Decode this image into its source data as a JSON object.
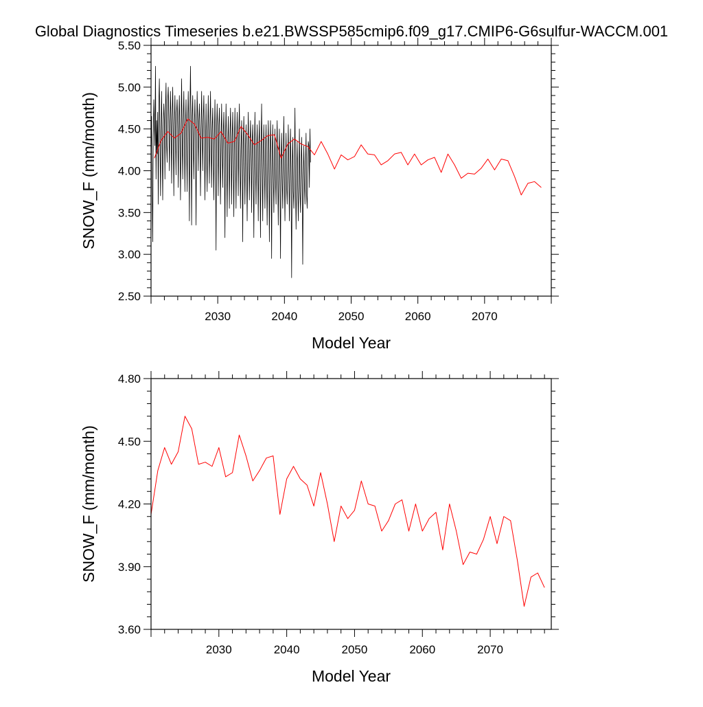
{
  "title": "Global Diagnostics Timeseries b.e21.BWSSP585cmip6.f09_g17.CMIP6-G6sulfur-WACCM.001",
  "colors": {
    "monthly": "#000000",
    "annual": "#ff0000",
    "axis": "#000000"
  },
  "chart_data": [
    {
      "type": "line",
      "xlabel": "Model Year",
      "ylabel": "SNOW_F (mm/month)",
      "xlim": [
        2020,
        2080
      ],
      "ylim": [
        2.5,
        5.5
      ],
      "xticks": [
        "2030",
        "2040",
        "2050",
        "2060",
        "2070"
      ],
      "yticks": [
        "2.50",
        "3.00",
        "3.50",
        "4.00",
        "4.50",
        "5.00",
        "5.50"
      ],
      "grid": false,
      "series": [
        {
          "kind": "monthly",
          "x_start": 2020.0,
          "x_step": 0.0833,
          "values": [
            4.2,
            4.65,
            3.85,
            3.15,
            4.4,
            4.85,
            4.55,
            4.3,
            5.25,
            3.9,
            4.6,
            4.2,
            4.7,
            3.6,
            4.8,
            5.1,
            4.4,
            3.7,
            4.45,
            4.95,
            4.35,
            3.65,
            4.5,
            4.8,
            4.6,
            3.9,
            4.75,
            5.05,
            4.3,
            4.1,
            4.85,
            5.0,
            4.6,
            4.0,
            4.55,
            4.95,
            4.55,
            3.85,
            4.65,
            5.0,
            4.45,
            3.7,
            4.55,
            4.9,
            4.4,
            3.95,
            4.7,
            4.85,
            4.5,
            3.8,
            4.6,
            4.9,
            4.35,
            3.65,
            4.5,
            5.1,
            4.4,
            3.9,
            4.6,
            4.95,
            4.4,
            3.75,
            4.55,
            4.85,
            4.3,
            3.75,
            4.6,
            4.95,
            4.45,
            3.4,
            4.7,
            5.25,
            4.5,
            3.35,
            4.65,
            4.9,
            4.3,
            3.9,
            4.55,
            4.85,
            4.35,
            3.35,
            4.4,
            4.95,
            4.55,
            4.0,
            4.6,
            4.8,
            4.4,
            3.7,
            4.5,
            4.95,
            4.45,
            4.0,
            4.6,
            4.9,
            4.4,
            3.65,
            4.3,
            4.8,
            4.2,
            3.75,
            4.45,
            4.9,
            4.3,
            3.85,
            4.55,
            4.95,
            4.35,
            3.8,
            4.5,
            4.75,
            4.2,
            3.65,
            4.4,
            4.85,
            4.3,
            3.05,
            4.5,
            4.8,
            4.35,
            3.7,
            4.55,
            4.75,
            4.2,
            3.6,
            4.35,
            4.8,
            4.25,
            3.8,
            4.45,
            4.7,
            4.2,
            3.2,
            4.35,
            4.8,
            4.15,
            3.45,
            4.3,
            4.65,
            4.2,
            3.55,
            4.4,
            4.75,
            4.25,
            3.6,
            4.4,
            4.7,
            4.1,
            3.45,
            4.3,
            4.75,
            4.2,
            3.55,
            4.35,
            4.7,
            4.3,
            3.7,
            4.5,
            4.8,
            4.1,
            3.55,
            4.25,
            4.6,
            4.15,
            3.15,
            4.35,
            4.65,
            4.1,
            3.6,
            4.3,
            4.55,
            4.05,
            3.4,
            4.25,
            4.7,
            4.1,
            3.65,
            4.3,
            4.6,
            4.15,
            3.5,
            4.35,
            4.55,
            4.0,
            3.2,
            4.25,
            4.7,
            4.05,
            3.6,
            4.25,
            4.55,
            4.1,
            3.4,
            4.3,
            4.6,
            4.0,
            3.2,
            4.3,
            4.8,
            4.05,
            3.4,
            4.25,
            4.55,
            4.05,
            3.55,
            4.25,
            4.55,
            3.95,
            3.35,
            4.2,
            4.6,
            4.05,
            3.15,
            4.2,
            4.6,
            4.0,
            2.95,
            4.2,
            4.55,
            3.95,
            3.5,
            4.1,
            4.5,
            3.9,
            3.6,
            4.25,
            4.6,
            3.95,
            3.35,
            4.15,
            4.5,
            3.85,
            2.95,
            4.15,
            4.45,
            3.9,
            3.55,
            4.2,
            4.65,
            3.9,
            3.4,
            4.1,
            4.45,
            3.8,
            3.6,
            4.1,
            4.55,
            3.95,
            3.4,
            4.15,
            4.5,
            3.85,
            2.72,
            4.05,
            4.4,
            3.75,
            3.55,
            4.05,
            4.75,
            3.85,
            3.3,
            4.0,
            4.35,
            3.8,
            3.4,
            3.9,
            4.5,
            3.75,
            3.5,
            4.05,
            4.4,
            3.85,
            2.88,
            3.95,
            4.3,
            3.85,
            3.6,
            4.05,
            4.45,
            3.7,
            3.55,
            4.0,
            4.35,
            4.3,
            3.8,
            4.5,
            4.1
          ]
        },
        {
          "kind": "annual",
          "x_start": 2020.5,
          "x_step": 1,
          "values": [
            4.15,
            4.36,
            4.47,
            4.39,
            4.45,
            4.62,
            4.56,
            4.39,
            4.4,
            4.38,
            4.47,
            4.33,
            4.35,
            4.53,
            4.43,
            4.31,
            4.36,
            4.42,
            4.43,
            4.15,
            4.32,
            4.38,
            4.32,
            4.29,
            4.19,
            4.35,
            4.2,
            4.02,
            4.19,
            4.13,
            4.17,
            4.31,
            4.2,
            4.19,
            4.07,
            4.12,
            4.2,
            4.22,
            4.07,
            4.2,
            4.07,
            4.13,
            4.16,
            3.98,
            4.2,
            4.07,
            3.91,
            3.97,
            3.96,
            4.03,
            4.14,
            4.01,
            4.14,
            4.12,
            3.93,
            3.71,
            3.85,
            3.87,
            3.8
          ]
        }
      ]
    },
    {
      "type": "line",
      "xlabel": "Model Year",
      "ylabel": "SNOW_F (mm/month)",
      "xlim": [
        2020,
        2079
      ],
      "ylim": [
        3.6,
        4.8
      ],
      "xticks": [
        "2030",
        "2040",
        "2050",
        "2060",
        "2070"
      ],
      "yticks": [
        "3.60",
        "3.90",
        "4.20",
        "4.50",
        "4.80"
      ],
      "grid": false,
      "series": [
        {
          "kind": "annual",
          "x_start": 2020.0,
          "x_step": 1,
          "values": [
            4.15,
            4.36,
            4.47,
            4.39,
            4.45,
            4.62,
            4.56,
            4.39,
            4.4,
            4.38,
            4.47,
            4.33,
            4.35,
            4.53,
            4.43,
            4.31,
            4.36,
            4.42,
            4.43,
            4.15,
            4.32,
            4.38,
            4.32,
            4.29,
            4.19,
            4.35,
            4.2,
            4.02,
            4.19,
            4.13,
            4.17,
            4.31,
            4.2,
            4.19,
            4.07,
            4.12,
            4.2,
            4.22,
            4.07,
            4.2,
            4.07,
            4.13,
            4.16,
            3.98,
            4.2,
            4.07,
            3.91,
            3.97,
            3.96,
            4.03,
            4.14,
            4.01,
            4.14,
            4.12,
            3.93,
            3.71,
            3.85,
            3.87,
            3.8
          ]
        }
      ]
    }
  ]
}
